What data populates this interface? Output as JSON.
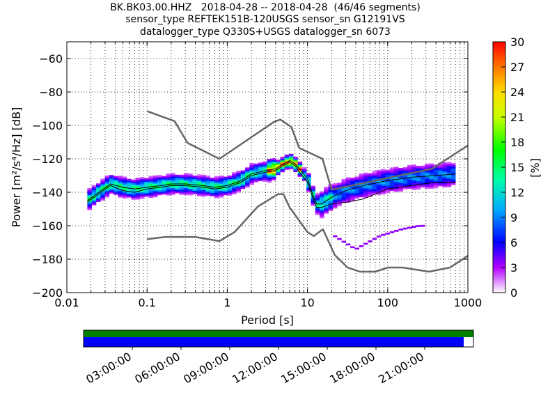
{
  "title_lines": [
    "BK.BK03.00.HHZ   2018-04-28 -- 2018-04-28  (46/46 segments)",
    "sensor_type REFTEK151B-120USGS sensor_sn G12191VS",
    "datalogger_type Q330S+USGS datalogger_sn 6073"
  ],
  "chart_data": [
    {
      "type": "heatmap",
      "title": "BK.BK03.00.HHZ   2018-04-28 -- 2018-04-28  (46/46 segments)",
      "xlabel": "Period [s]",
      "ylabel": "Power [m²/s⁴/Hz] [dB]",
      "x_scale": "log",
      "xlim": [
        0.01,
        1000
      ],
      "ylim": [
        -200,
        -50
      ],
      "x_ticks": [
        0.01,
        0.1,
        1,
        10,
        100,
        1000
      ],
      "x_tick_labels": [
        "0.01",
        "0.1",
        "1",
        "10",
        "100",
        "1000"
      ],
      "y_ticks": [
        -200,
        -180,
        -160,
        -140,
        -120,
        -100,
        -80,
        -60
      ],
      "y_tick_labels": [
        "−200",
        "−180",
        "−160",
        "−140",
        "−120",
        "−100",
        "−80",
        "−60"
      ],
      "grid": true,
      "colorbar": {
        "label": "[%]",
        "min": 0,
        "max": 30,
        "ticks": [
          0,
          3,
          6,
          9,
          12,
          15,
          18,
          21,
          24,
          27,
          30
        ],
        "tick_labels": [
          "0",
          "3",
          "6",
          "9",
          "12",
          "15",
          "18",
          "21",
          "24",
          "27",
          "30"
        ]
      },
      "series": [
        {
          "kind": "noise-model-high",
          "x": [
            0.1,
            0.22,
            0.32,
            0.8,
            3.8,
            4.6,
            6.3,
            7.9,
            15.4,
            20,
            354.8,
            1000
          ],
          "y": [
            -91.5,
            -97.4,
            -110.5,
            -120,
            -98,
            -96.5,
            -101,
            -113.5,
            -120,
            -138.5,
            -126,
            -112
          ]
        },
        {
          "kind": "noise-model-low",
          "x": [
            0.1,
            0.17,
            0.4,
            0.8,
            1.24,
            2.4,
            4.3,
            5,
            6,
            10,
            12,
            15.6,
            21.9,
            31.6,
            45,
            70,
            101,
            154,
            328,
            600,
            1000
          ],
          "y": [
            -168,
            -166.7,
            -166.7,
            -169.2,
            -163.7,
            -148.6,
            -141.1,
            -141.1,
            -149,
            -163.8,
            -166.2,
            -162.1,
            -177.5,
            -185,
            -187.5,
            -187.5,
            -185,
            -185,
            -187.5,
            -185,
            -178
          ]
        },
        {
          "kind": "mode",
          "x": [
            0.018,
            0.025,
            0.035,
            0.05,
            0.07,
            0.1,
            0.15,
            0.2,
            0.3,
            0.5,
            0.7,
            1,
            1.5,
            2,
            3,
            4,
            5,
            6,
            7,
            8,
            10,
            12,
            13,
            15,
            20,
            30,
            50,
            100,
            200,
            400,
            700
          ],
          "y": [
            -145,
            -140,
            -135,
            -137,
            -138,
            -137,
            -136,
            -135,
            -135,
            -136,
            -137,
            -136,
            -133,
            -129,
            -127,
            -126,
            -123,
            -121,
            -123,
            -126,
            -132,
            -143,
            -147,
            -147,
            -143,
            -139,
            -136,
            -133,
            -131,
            -130,
            -129
          ]
        },
        {
          "kind": "mean",
          "x": [
            0.018,
            0.025,
            0.035,
            0.05,
            0.07,
            0.1,
            0.15,
            0.2,
            0.3,
            0.5,
            0.7,
            1,
            1.5,
            2,
            3,
            4,
            5,
            6,
            7,
            8,
            10,
            12,
            13,
            15,
            20,
            30,
            50,
            100,
            200,
            400,
            700
          ],
          "y": [
            -146,
            -141,
            -136,
            -139,
            -140,
            -138,
            -137,
            -136,
            -136,
            -137,
            -138,
            -137,
            -134,
            -130,
            -128,
            -127,
            -124,
            -122,
            -124,
            -128,
            -134,
            -145,
            -149,
            -149,
            -147,
            -146,
            -144,
            -138,
            -136,
            -134,
            -134
          ]
        }
      ]
    },
    {
      "type": "bar",
      "title": "",
      "x_tick_labels": [
        "03:00:00",
        "06:00:00",
        "09:00:00",
        "12:00:00",
        "15:00:00",
        "18:00:00",
        "21:00:00"
      ],
      "rows": [
        {
          "color": "#008000",
          "coverage": 1.0
        },
        {
          "color": "#0000ff",
          "coverage": 0.975
        }
      ]
    }
  ]
}
